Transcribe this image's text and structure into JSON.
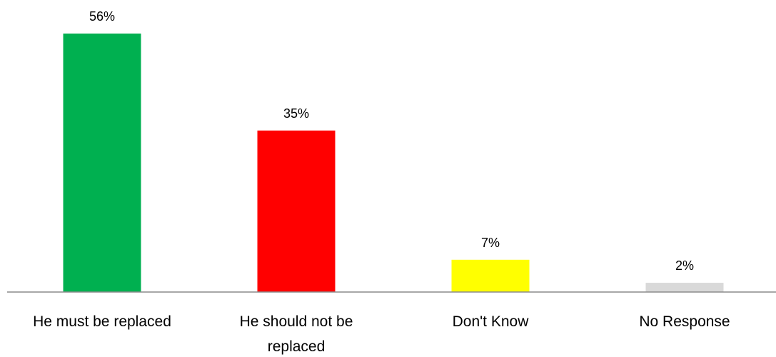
{
  "chart_data": {
    "type": "bar",
    "title": "",
    "xlabel": "",
    "ylabel": "",
    "categories": [
      "He must be replaced",
      "He should not be replaced",
      "Don't Know",
      "No Response"
    ],
    "category_lines": [
      [
        "He must be replaced"
      ],
      [
        "He should not be",
        "replaced"
      ],
      [
        "Don't Know"
      ],
      [
        "No Response"
      ]
    ],
    "values": [
      56,
      35,
      7,
      2
    ],
    "data_labels": [
      "56%",
      "35%",
      "7%",
      "2%"
    ],
    "colors": [
      "#00b050",
      "#ff0000",
      "#ffff00",
      "#d9d9d9"
    ],
    "ylim": [
      0,
      56
    ],
    "grid": false,
    "legend": "none"
  }
}
